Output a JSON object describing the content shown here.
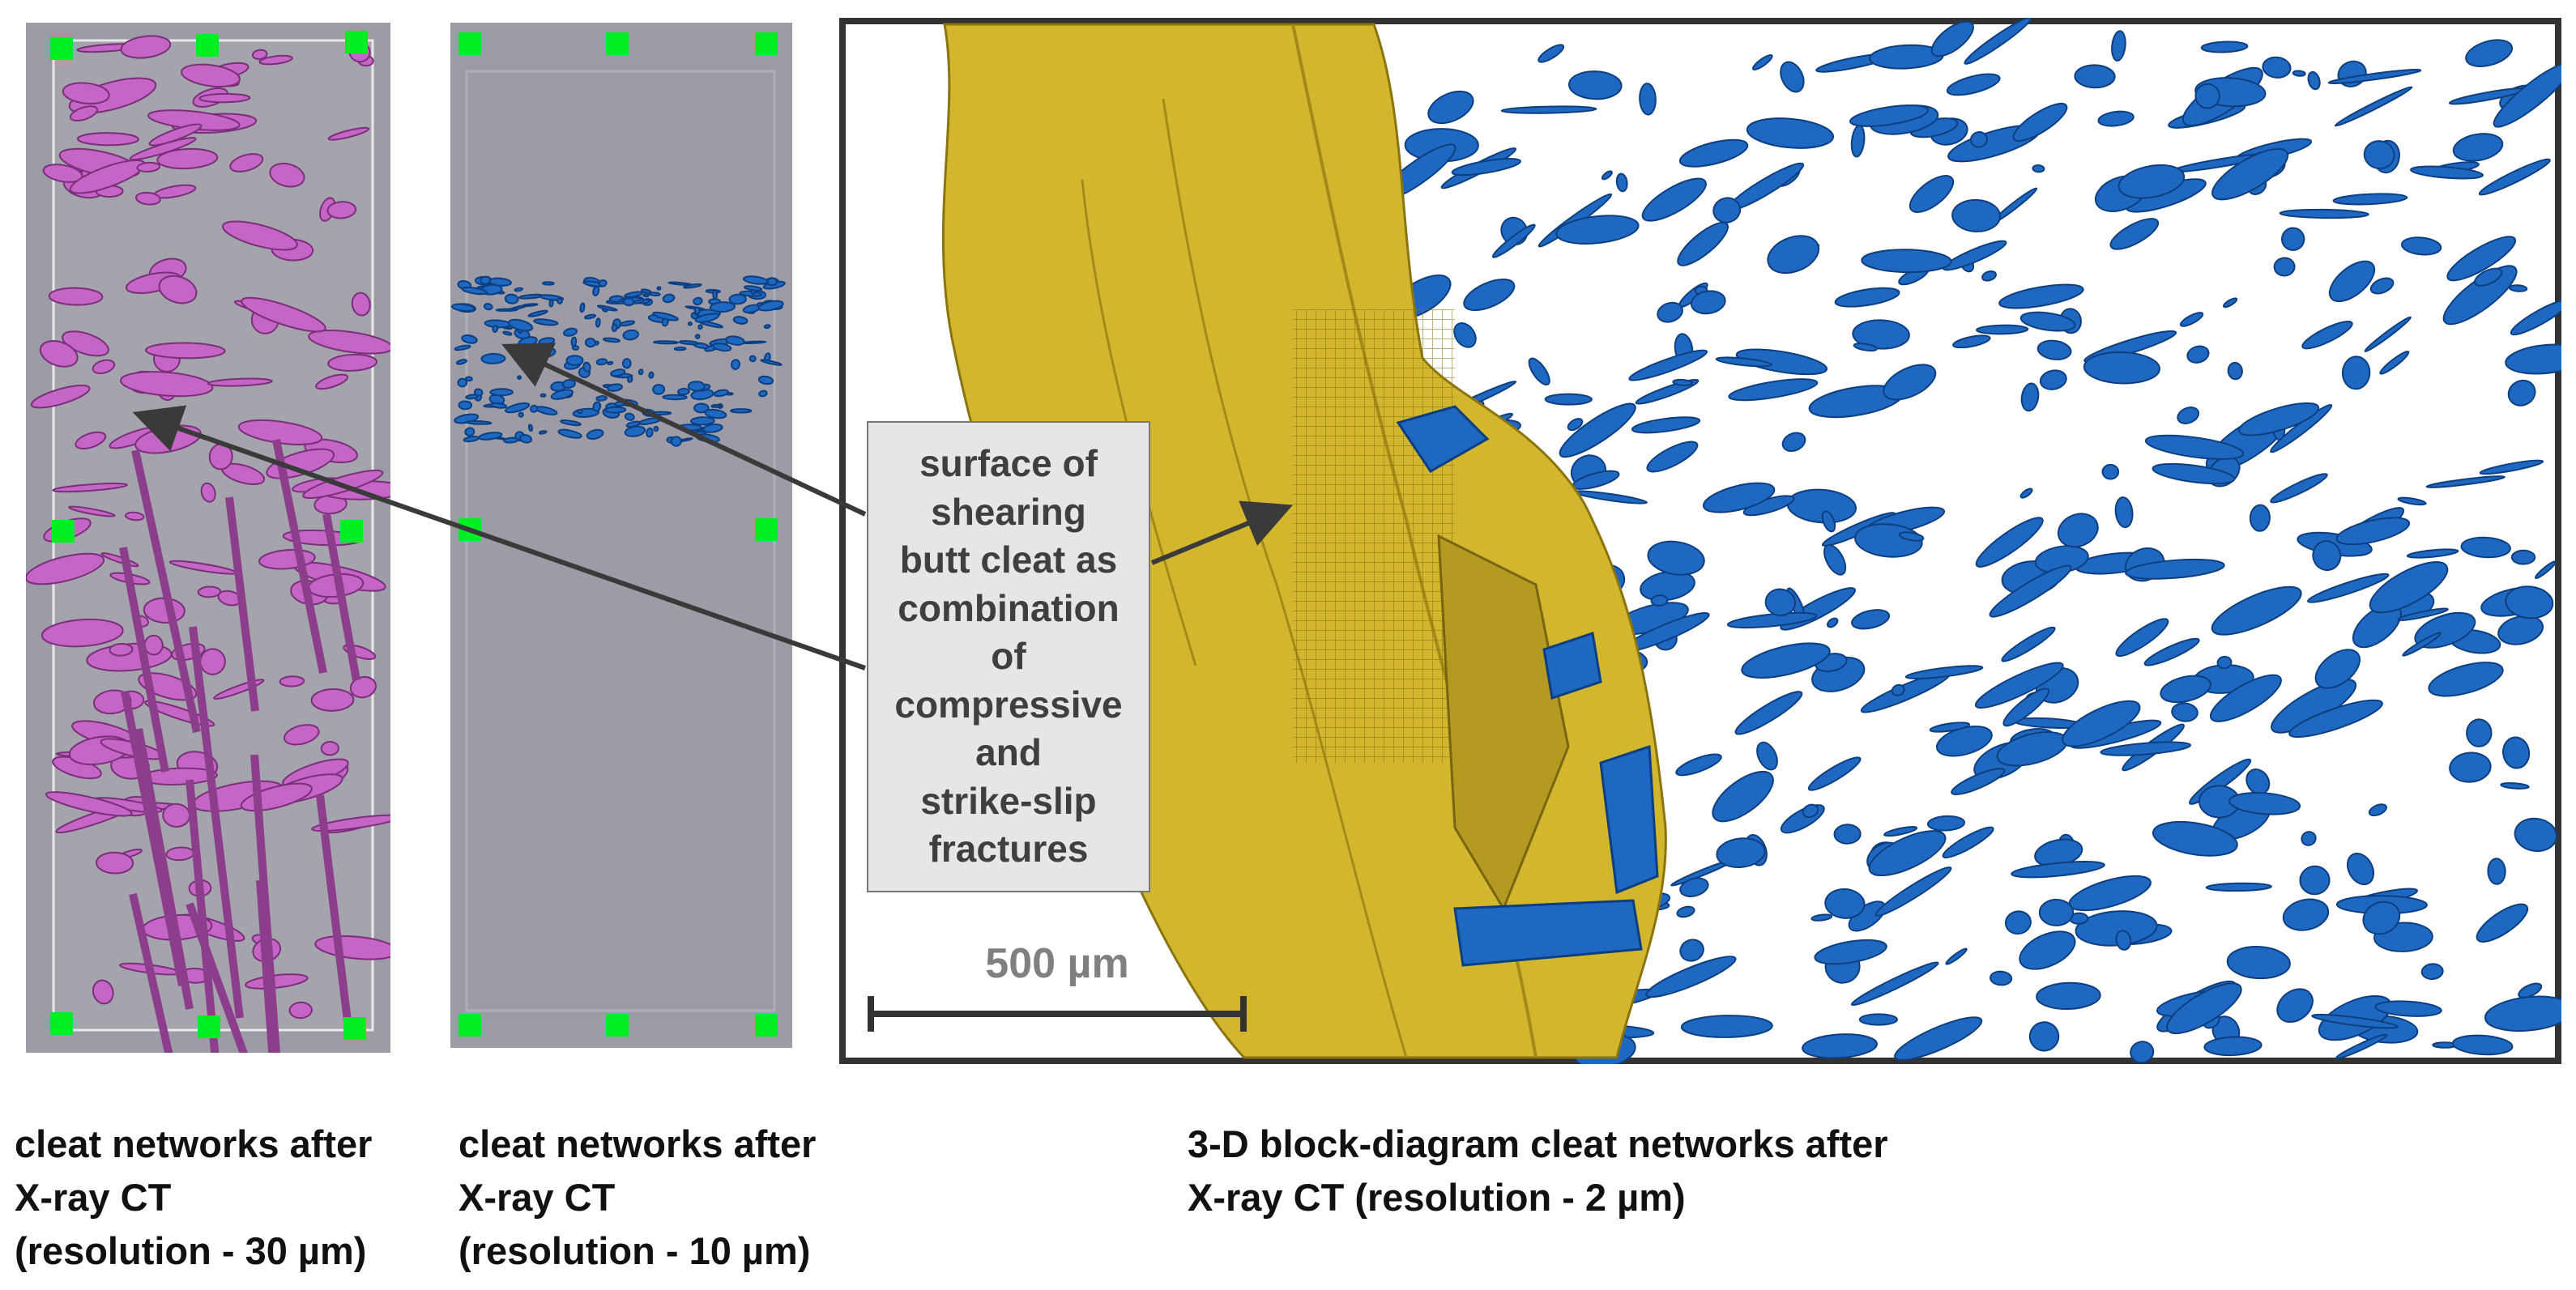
{
  "panels": [
    {
      "id": "ct-30",
      "caption": [
        "cleat networks after",
        "X-ray CT",
        "(resolution - 30 µm)"
      ],
      "fracture_color": "#c565c5"
    },
    {
      "id": "ct-10",
      "caption": [
        "cleat networks after",
        "X-ray CT",
        "(resolution - 10 µm)"
      ],
      "fracture_color": "#1f68c2"
    },
    {
      "id": "block-3d",
      "caption": [
        "3-D block-diagram cleat networks after",
        "X-ray CT  (resolution - 2 µm)"
      ],
      "surface_color": "#d2b72e",
      "fracture_color": "#1f68c2"
    }
  ],
  "callout": {
    "lines": [
      "surface of",
      "shearing",
      "butt cleat as",
      "combination",
      "of",
      "compressive",
      "and",
      "strike-slip",
      "fractures"
    ]
  },
  "scale_bar": {
    "label": "500 µm"
  },
  "colors": {
    "sample_background": "#9c9ba6",
    "handle": "#00ee22",
    "block_frame": "#333333",
    "arrow": "#3a3a3a"
  }
}
